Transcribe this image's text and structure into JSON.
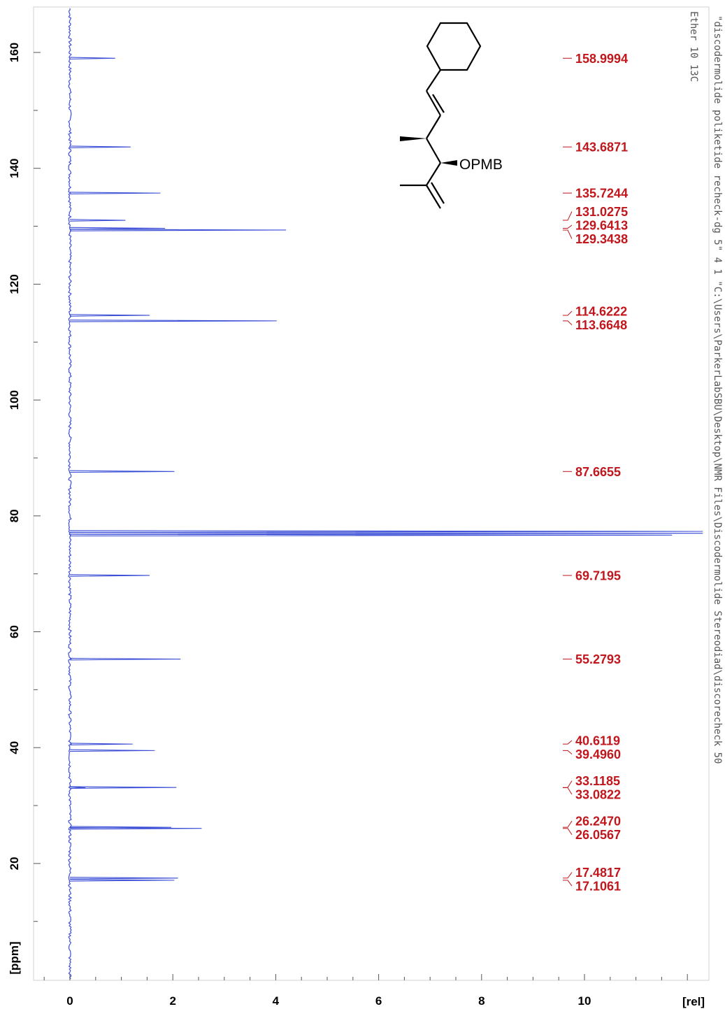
{
  "chart_data": {
    "type": "line",
    "orientation": "rotated",
    "xlabel": "[rel]",
    "ylabel": "[ppm]",
    "xlim": [
      0,
      12.3
    ],
    "ylim": [
      3.8,
      167.5
    ],
    "x_ticks": [
      0,
      2,
      4,
      6,
      8,
      10
    ],
    "y_ticks": [
      160,
      140,
      120,
      100,
      80,
      60,
      40,
      20
    ],
    "line_color": "#3c4fd6",
    "label_color": "#c0161c",
    "peaks": [
      {
        "ppm": 158.9994,
        "intensity": 0.88
      },
      {
        "ppm": 143.6871,
        "intensity": 1.18
      },
      {
        "ppm": 135.7244,
        "intensity": 1.76
      },
      {
        "ppm": 131.0275,
        "intensity": 1.08
      },
      {
        "ppm": 129.6413,
        "intensity": 1.85
      },
      {
        "ppm": 129.3438,
        "intensity": 4.2
      },
      {
        "ppm": 114.6222,
        "intensity": 1.55
      },
      {
        "ppm": 113.6648,
        "intensity": 4.02
      },
      {
        "ppm": 87.6655,
        "intensity": 2.03
      },
      {
        "ppm": 77.32,
        "intensity": 12.3
      },
      {
        "ppm": 77.0,
        "intensity": 12.3
      },
      {
        "ppm": 76.68,
        "intensity": 11.7
      },
      {
        "ppm": 69.7195,
        "intensity": 1.55
      },
      {
        "ppm": 55.2793,
        "intensity": 2.15
      },
      {
        "ppm": 40.6119,
        "intensity": 1.22
      },
      {
        "ppm": 39.496,
        "intensity": 1.65
      },
      {
        "ppm": 33.1185,
        "intensity": 2.07
      },
      {
        "ppm": 33.0822,
        "intensity": 0.3
      },
      {
        "ppm": 26.247,
        "intensity": 1.97
      },
      {
        "ppm": 26.0567,
        "intensity": 2.56
      },
      {
        "ppm": 17.4817,
        "intensity": 2.1
      },
      {
        "ppm": 17.1061,
        "intensity": 2.03
      }
    ],
    "peak_labels": [
      {
        "text": "158.9994",
        "ppm": 158.9994
      },
      {
        "text": "143.6871",
        "ppm": 143.6871
      },
      {
        "text": "135.7244",
        "ppm": 135.7244
      },
      {
        "text": "131.0275",
        "ppm": 131.0275
      },
      {
        "text": "129.6413",
        "ppm": 129.6413
      },
      {
        "text": "129.3438",
        "ppm": 129.3438
      },
      {
        "text": "114.6222",
        "ppm": 114.6222
      },
      {
        "text": "113.6648",
        "ppm": 113.6648
      },
      {
        "text": "87.6655",
        "ppm": 87.6655
      },
      {
        "text": "69.7195",
        "ppm": 69.7195
      },
      {
        "text": "55.2793",
        "ppm": 55.2793
      },
      {
        "text": "40.6119",
        "ppm": 40.6119
      },
      {
        "text": "39.4960",
        "ppm": 39.496
      },
      {
        "text": "33.1185",
        "ppm": 33.1185
      },
      {
        "text": "33.0822",
        "ppm": 33.0822
      },
      {
        "text": "26.2470",
        "ppm": 26.247
      },
      {
        "text": "26.0567",
        "ppm": 26.0567
      },
      {
        "text": "17.4817",
        "ppm": 17.4817
      },
      {
        "text": "17.1061",
        "ppm": 17.1061
      }
    ],
    "title_vertical": "\"discodermolide poliketide recheck-dg 5\"   4   1   \"C:\\Users\\ParkerLabSBU\\Desktop\\NMR Files\\Discodermolide Stereodiad\\discorecheck 50",
    "subtitle_vertical": "Ether 10 13C",
    "structure_label": "OPMB"
  }
}
